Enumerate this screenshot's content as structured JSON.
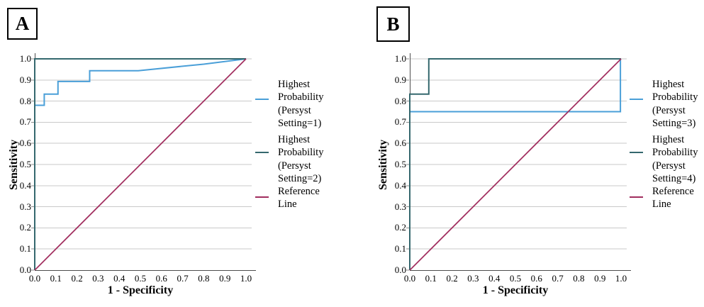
{
  "figure": {
    "background": "#ffffff",
    "style": {
      "grid_color": "#C9C9C9",
      "axis_color": "#4D4D4D",
      "tick_color": "#8C8C8C",
      "text_color": "#000000"
    }
  },
  "chart_data": [
    {
      "type": "line",
      "panel_label": "A",
      "xlabel": "1 - Specificity",
      "ylabel": "Sensitivity",
      "xlim": [
        0,
        1
      ],
      "ylim": [
        0,
        1
      ],
      "xticks": [
        "0.0",
        "0.1",
        "0.2",
        "0.3",
        "0.4",
        "0.5",
        "0.6",
        "0.7",
        "0.8",
        "0.9",
        "1.0"
      ],
      "yticks": [
        "0.0",
        "0.1",
        "0.2",
        "0.3",
        "0.4",
        "0.5",
        "0.6",
        "0.7",
        "0.8",
        "0.9",
        "1.0"
      ],
      "grid": "horizontal",
      "legend_position": "right",
      "series": [
        {
          "name": "Highest Probability (Persyst Setting=1)",
          "legend_label": "Highest\nProbability\n(Persyst\nSetting=1)",
          "color": "#4A9FD8",
          "width": 2,
          "points": [
            [
              0,
              0
            ],
            [
              0,
              0.78
            ],
            [
              0.045,
              0.78
            ],
            [
              0.045,
              0.833
            ],
            [
              0.11,
              0.833
            ],
            [
              0.11,
              0.893
            ],
            [
              0.26,
              0.893
            ],
            [
              0.26,
              0.944
            ],
            [
              0.49,
              0.944
            ],
            [
              0.8,
              0.975
            ],
            [
              1,
              1
            ]
          ]
        },
        {
          "name": "Highest Probability (Persyst Setting=2)",
          "legend_label": "Highest\nProbability\n(Persyst\nSetting=2)",
          "color": "#35686E",
          "width": 2,
          "points": [
            [
              0,
              0
            ],
            [
              0,
              1
            ],
            [
              1,
              1
            ]
          ]
        },
        {
          "name": "Reference Line",
          "legend_label": "Reference\nLine",
          "color": "#A12D5E",
          "width": 1.7,
          "points": [
            [
              0,
              0
            ],
            [
              1,
              1
            ]
          ]
        }
      ]
    },
    {
      "type": "line",
      "panel_label": "B",
      "xlabel": "1 - Specificity",
      "ylabel": "Sensitivity",
      "xlim": [
        0,
        1
      ],
      "ylim": [
        0,
        1
      ],
      "xticks": [
        "0.0",
        "0.1",
        "0.2",
        "0.3",
        "0.4",
        "0.5",
        "0.6",
        "0.7",
        "0.8",
        "0.9",
        "1.0"
      ],
      "yticks": [
        "0.0",
        "0.1",
        "0.2",
        "0.3",
        "0.4",
        "0.5",
        "0.6",
        "0.7",
        "0.8",
        "0.9",
        "1.0"
      ],
      "grid": "horizontal",
      "legend_position": "right",
      "series": [
        {
          "name": "Highest Probability (Persyst Setting=3)",
          "legend_label": "Highest\nProbability\n(Persyst\nSetting=3)",
          "color": "#4A9FD8",
          "width": 2,
          "points": [
            [
              0,
              0
            ],
            [
              0,
              0.75
            ],
            [
              0.997,
              0.75
            ],
            [
              0.997,
              1
            ]
          ]
        },
        {
          "name": "Highest Probability (Persyst Setting=4)",
          "legend_label": "Highest\nProbability\n(Persyst\nSetting=4)",
          "color": "#35686E",
          "width": 2,
          "points": [
            [
              0,
              0
            ],
            [
              0,
              0.833
            ],
            [
              0.09,
              0.833
            ],
            [
              0.09,
              1
            ],
            [
              1,
              1
            ]
          ]
        },
        {
          "name": "Reference Line",
          "legend_label": "Reference\nLine",
          "color": "#A12D5E",
          "width": 1.7,
          "points": [
            [
              0,
              0
            ],
            [
              1,
              1
            ]
          ]
        }
      ]
    }
  ]
}
